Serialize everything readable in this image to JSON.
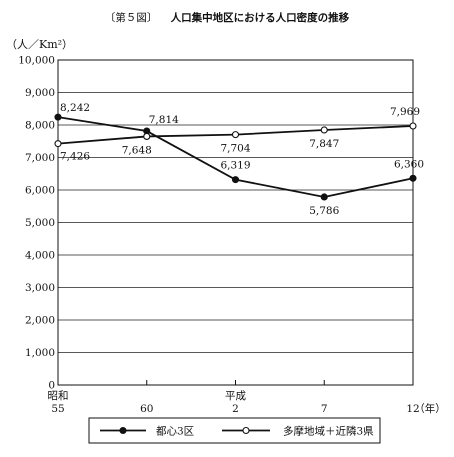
{
  "figure_label": "〔第５図〕",
  "title": "人口集中地区における人口密度の推移",
  "chart_data": {
    "type": "line",
    "title": "人口集中地区における人口密度の推移",
    "ylabel": "（人／Km²）",
    "xlabel": "（年）",
    "ylim": [
      0,
      10000
    ],
    "yticks": [
      0,
      1000,
      2000,
      3000,
      4000,
      5000,
      6000,
      7000,
      8000,
      9000,
      10000
    ],
    "ytick_labels": [
      "0",
      "1,000",
      "2,000",
      "3,000",
      "4,000",
      "5,000",
      "6,000",
      "7,000",
      "8,000",
      "9,000",
      "10,000"
    ],
    "categories": [
      {
        "era": "昭和",
        "year": "55"
      },
      {
        "era": "",
        "year": "60"
      },
      {
        "era": "平成",
        "year": "2"
      },
      {
        "era": "",
        "year": "7"
      },
      {
        "era": "",
        "year": "12"
      }
    ],
    "grid": true,
    "legend_position": "bottom",
    "series": [
      {
        "name": "都心3区",
        "marker": "filled-circle",
        "values": [
          8242,
          7814,
          6319,
          5786,
          6360
        ],
        "labels": [
          "8,242",
          "7,814",
          "6,319",
          "5,786",
          "6,360"
        ]
      },
      {
        "name": "多摩地域＋近隣3県",
        "marker": "open-circle",
        "values": [
          7426,
          7648,
          7704,
          7847,
          7969
        ],
        "labels": [
          "7,426",
          "7,648",
          "7,704",
          "7,847",
          "7,969"
        ]
      }
    ]
  }
}
